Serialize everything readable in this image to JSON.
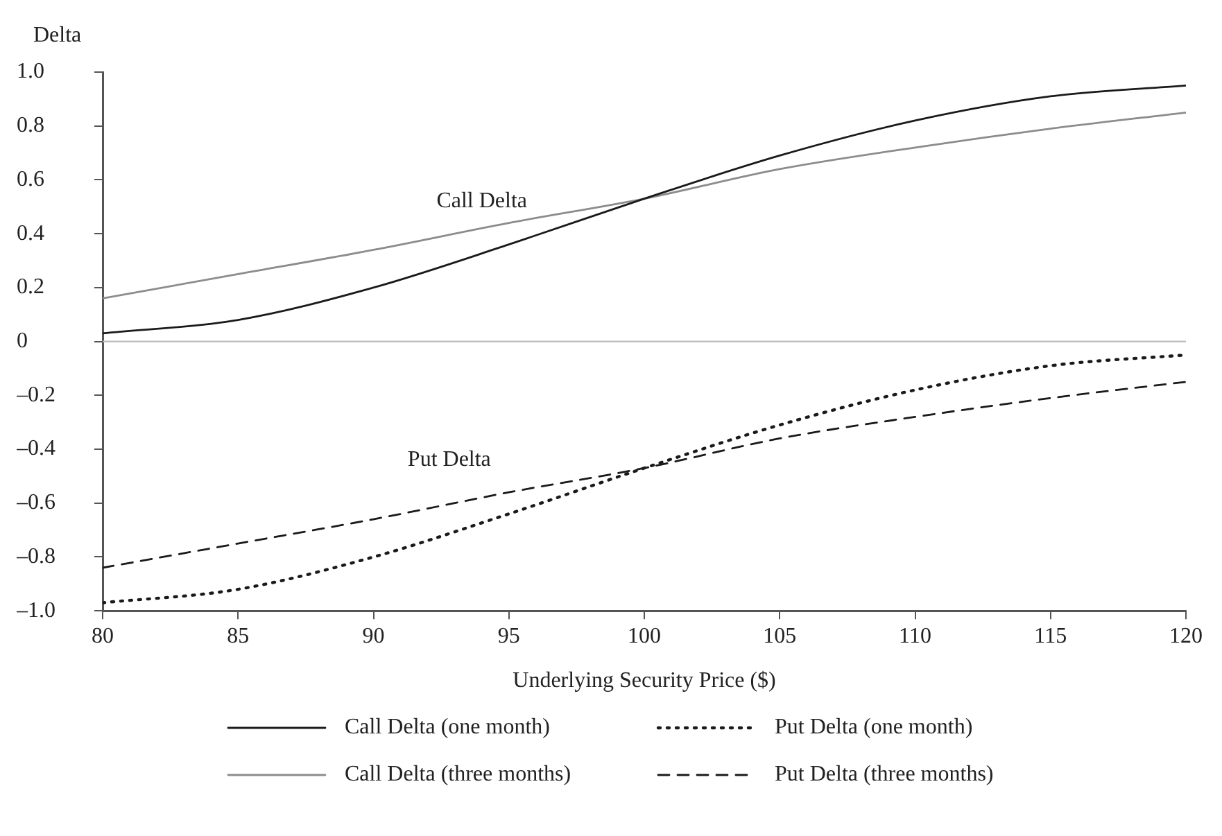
{
  "chart_data": {
    "type": "line",
    "xlabel": "Underlying Security Price ($)",
    "ylabel": "Delta",
    "x": [
      80,
      85,
      90,
      95,
      100,
      105,
      110,
      115,
      120
    ],
    "series": [
      {
        "name": "Call Delta (one month)",
        "color": "#1a1a1a",
        "line_style": "solid",
        "values": [
          0.03,
          0.08,
          0.2,
          0.36,
          0.53,
          0.69,
          0.82,
          0.91,
          0.95
        ]
      },
      {
        "name": "Put Delta (one month)",
        "color": "#1a1a1a",
        "line_style": "dotted",
        "values": [
          -0.97,
          -0.92,
          -0.8,
          -0.64,
          -0.47,
          -0.31,
          -0.18,
          -0.09,
          -0.05
        ]
      },
      {
        "name": "Call Delta (three months)",
        "color": "#8c8c8c",
        "line_style": "solid",
        "values": [
          0.16,
          0.25,
          0.34,
          0.44,
          0.53,
          0.64,
          0.72,
          0.79,
          0.85
        ]
      },
      {
        "name": "Put Delta (three months)",
        "color": "#1a1a1a",
        "line_style": "dashed",
        "values": [
          -0.84,
          -0.75,
          -0.66,
          -0.56,
          -0.47,
          -0.36,
          -0.28,
          -0.21,
          -0.15
        ]
      }
    ],
    "xlim": [
      80,
      120
    ],
    "xticks": [
      80,
      85,
      90,
      95,
      100,
      105,
      110,
      115,
      120
    ],
    "ylim": [
      -1,
      1
    ],
    "yticks": [
      {
        "value": -1,
        "label": "–1.0"
      },
      {
        "value": -0.8,
        "label": "–0.8"
      },
      {
        "value": -0.6,
        "label": "–0.6"
      },
      {
        "value": -0.4,
        "label": "–0.4"
      },
      {
        "value": -0.2,
        "label": "–0.2"
      },
      0,
      {
        "value": 0.2,
        "label": "0.2"
      },
      {
        "value": 0.4,
        "label": "0.4"
      },
      {
        "value": 0.6,
        "label": "0.6"
      },
      {
        "value": 0.8,
        "label": "0.8"
      },
      {
        "value": 1,
        "label": "1.0"
      }
    ],
    "ref_lines": [
      {
        "axis": "y",
        "value": 0,
        "color": "#bbbbbb"
      }
    ],
    "annotations": [
      "Call Delta",
      "Put Delta"
    ],
    "grid": false,
    "legend": "bottom",
    "marker": "none"
  }
}
